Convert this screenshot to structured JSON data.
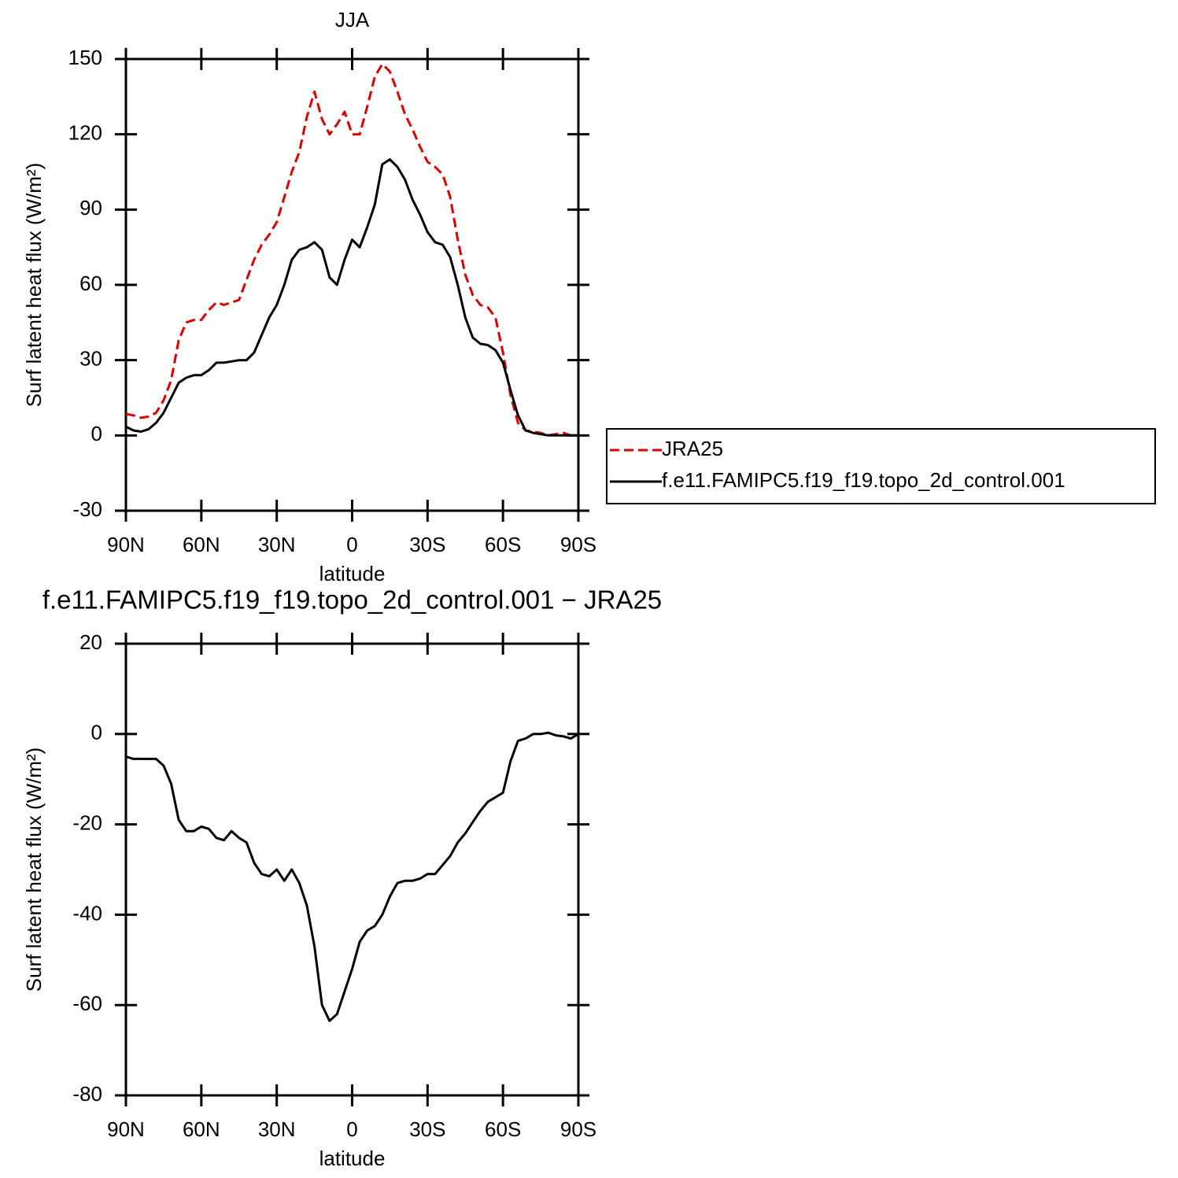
{
  "chart_data": [
    {
      "type": "line",
      "title": "JJA",
      "xlabel": "latitude",
      "ylabel": "Surf latent heat flux (W/m²)",
      "x": [
        90,
        87,
        84,
        81,
        78,
        75,
        72,
        69,
        66,
        63,
        60,
        57,
        54,
        51,
        48,
        45,
        42,
        39,
        36,
        33,
        30,
        27,
        24,
        21,
        18,
        15,
        12,
        9,
        6,
        3,
        0,
        -3,
        -6,
        -9,
        -12,
        -15,
        -18,
        -21,
        -24,
        -27,
        -30,
        -33,
        -36,
        -39,
        -42,
        -45,
        -48,
        -51,
        -54,
        -57,
        -60,
        -63,
        -66,
        -69,
        -72,
        -75,
        -78,
        -81,
        -84,
        -87,
        -90
      ],
      "xlim": [
        90,
        -90
      ],
      "xticks": [
        {
          "value": 90,
          "label": "90N"
        },
        {
          "value": 60,
          "label": "60N"
        },
        {
          "value": 30,
          "label": "30N"
        },
        0,
        {
          "value": -30,
          "label": "30S"
        },
        {
          "value": -60,
          "label": "60S"
        },
        {
          "value": -90,
          "label": "90S"
        }
      ],
      "ylim": [
        -30,
        150
      ],
      "yticks": [
        -30,
        0,
        30,
        60,
        90,
        120,
        150
      ],
      "legend": "right",
      "series": [
        {
          "name": "JRA25",
          "color": "#e00000",
          "dashed": true,
          "values": [
            8.5,
            8,
            7,
            7.5,
            9,
            14,
            22,
            38,
            45,
            46,
            46,
            50,
            53,
            52,
            53,
            54,
            62,
            70,
            76,
            80,
            85,
            95,
            105,
            113,
            127,
            137,
            126,
            120,
            124,
            129,
            120,
            120,
            131,
            143,
            148,
            145,
            137,
            128,
            122,
            115,
            109,
            107,
            104,
            95,
            78,
            64,
            56,
            52,
            51,
            47,
            33,
            16,
            5,
            2,
            1.5,
            1,
            0,
            0.5,
            1,
            0,
            0
          ]
        },
        {
          "name": "f.e11.FAMIPC5.f19_f19.topo_2d_control.001",
          "color": "#000000",
          "dashed": false,
          "values": [
            3.5,
            2,
            1.5,
            2.5,
            5,
            9,
            15,
            21,
            23,
            24,
            24,
            26,
            29,
            29,
            29.5,
            30,
            30,
            33,
            40,
            47,
            52,
            60,
            70,
            74,
            75,
            77,
            74,
            63,
            60,
            70,
            78,
            75,
            83,
            92,
            108,
            110,
            107,
            102,
            94,
            88,
            81,
            77,
            76,
            71,
            60,
            47,
            39,
            36.5,
            36,
            34,
            29,
            18,
            8,
            2,
            1,
            0.5,
            0,
            0,
            0,
            0,
            0
          ]
        }
      ]
    },
    {
      "type": "line",
      "title": "f.e11.FAMIPC5.f19_f19.topo_2d_control.001 − JRA25",
      "xlabel": "latitude",
      "ylabel": "Surf latent heat flux (W/m²)",
      "x": [
        90,
        87,
        84,
        81,
        78,
        75,
        72,
        69,
        66,
        63,
        60,
        57,
        54,
        51,
        48,
        45,
        42,
        39,
        36,
        33,
        30,
        27,
        24,
        21,
        18,
        15,
        12,
        9,
        6,
        3,
        0,
        -3,
        -6,
        -9,
        -12,
        -15,
        -18,
        -21,
        -24,
        -27,
        -30,
        -33,
        -36,
        -39,
        -42,
        -45,
        -48,
        -51,
        -54,
        -57,
        -60,
        -63,
        -66,
        -69,
        -72,
        -75,
        -78,
        -81,
        -84,
        -87,
        -90
      ],
      "xlim": [
        90,
        -90
      ],
      "xticks": [
        {
          "value": 90,
          "label": "90N"
        },
        {
          "value": 60,
          "label": "60N"
        },
        {
          "value": 30,
          "label": "30N"
        },
        0,
        {
          "value": -30,
          "label": "30S"
        },
        {
          "value": -60,
          "label": "60S"
        },
        {
          "value": -90,
          "label": "90S"
        }
      ],
      "ylim": [
        -80,
        20
      ],
      "yticks": [
        -80,
        -60,
        -40,
        -20,
        0,
        20
      ],
      "series": [
        {
          "color": "#000000",
          "dashed": false,
          "values": [
            -5,
            -5.5,
            -5.5,
            -5.5,
            -5.5,
            -7,
            -11,
            -19,
            -21.5,
            -21.5,
            -20.5,
            -21,
            -23,
            -23.5,
            -21.5,
            -23,
            -24,
            -28.5,
            -31,
            -31.5,
            -30,
            -32.5,
            -30,
            -33,
            -38,
            -47,
            -60,
            -63.5,
            -62,
            -57,
            -52,
            -46,
            -43.5,
            -42.5,
            -40,
            -36,
            -33,
            -32.5,
            -32.5,
            -32,
            -31,
            -31,
            -29,
            -27,
            -24,
            -22,
            -19.5,
            -17,
            -15,
            -14,
            -13,
            -6,
            -1.5,
            -1,
            0,
            0,
            0.3,
            -0.3,
            -0.5,
            -1,
            0
          ]
        }
      ]
    }
  ]
}
